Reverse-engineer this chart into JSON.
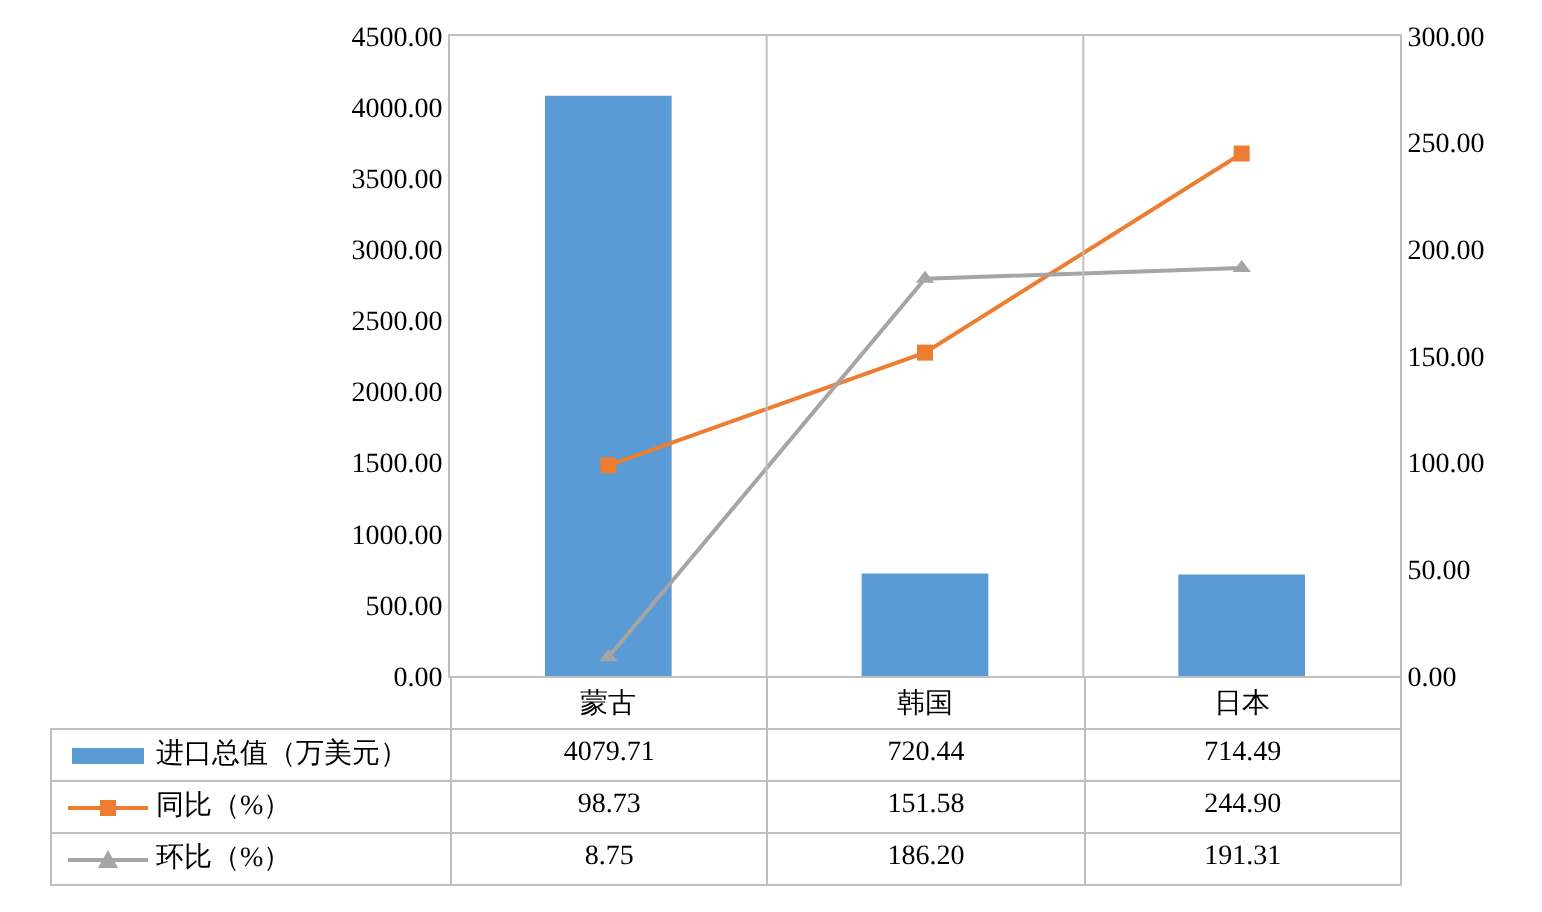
{
  "chart_data": {
    "type": "bar",
    "categories": [
      "蒙古",
      "韩国",
      "日本"
    ],
    "series": [
      {
        "name": "进口总值（万美元）",
        "color": "#5b9bd5",
        "values": [
          4079.71,
          720.44,
          714.49
        ],
        "value_labels": [
          "4079.71",
          "720.44",
          "714.49"
        ]
      },
      {
        "name": "同比（%）",
        "type": "line",
        "axis": "y2",
        "color": "#ed7d31",
        "marker": "square",
        "values": [
          98.73,
          151.58,
          244.9
        ],
        "value_labels": [
          "98.73",
          "151.58",
          "244.90"
        ]
      },
      {
        "name": "环比（%）",
        "type": "line",
        "axis": "y2",
        "color": "#a5a5a5",
        "marker": "triangle",
        "values": [
          8.75,
          186.2,
          191.31
        ],
        "value_labels": [
          "8.75",
          "186.20",
          "191.31"
        ]
      }
    ],
    "ylim": [
      0,
      4500
    ],
    "yticks": [
      {
        "value": 0,
        "label": "0.00"
      },
      {
        "value": 500,
        "label": "500.00"
      },
      {
        "value": 1000,
        "label": "1000.00"
      },
      {
        "value": 1500,
        "label": "1500.00"
      },
      {
        "value": 2000,
        "label": "2000.00"
      },
      {
        "value": 2500,
        "label": "2500.00"
      },
      {
        "value": 3000,
        "label": "3000.00"
      },
      {
        "value": 3500,
        "label": "3500.00"
      },
      {
        "value": 4000,
        "label": "4000.00"
      },
      {
        "value": 4500,
        "label": "4500.00"
      }
    ],
    "y2lim": [
      0,
      300
    ],
    "y2ticks": [
      {
        "value": 0,
        "label": "0.00"
      },
      {
        "value": 50,
        "label": "50.00"
      },
      {
        "value": 100,
        "label": "100.00"
      },
      {
        "value": 150,
        "label": "150.00"
      },
      {
        "value": 200,
        "label": "200.00"
      },
      {
        "value": 250,
        "label": "250.00"
      },
      {
        "value": 300,
        "label": "300.00"
      }
    ],
    "grid": "x",
    "legend": "bottom"
  }
}
